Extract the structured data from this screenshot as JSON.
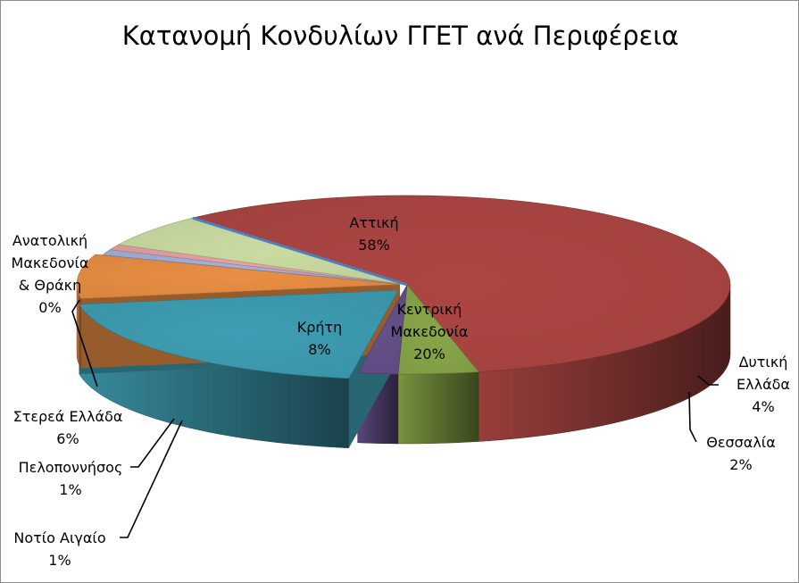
{
  "chart_data": {
    "type": "pie",
    "title": "Κατανομή Κονδυλίων ΓΓΕΤ ανά Περιφέρεια",
    "data_label_format": "percent",
    "slices": [
      {
        "name": "Αττική",
        "value": 58,
        "label_lines": [
          "Αττική",
          "58%"
        ],
        "color": "#A0413E"
      },
      {
        "name": "Δυτική Ελλάδα",
        "value": 4,
        "label_lines": [
          "Δυτική",
          "Ελλάδα",
          "4%"
        ],
        "color": "#7E9B43"
      },
      {
        "name": "Θεσσαλία",
        "value": 2,
        "label_lines": [
          "Θεσσαλία",
          "2%"
        ],
        "color": "#5E4A80"
      },
      {
        "name": "Κεντρική Μακεδονία",
        "value": 20,
        "label_lines": [
          "Κεντρική",
          "Μακεδονία",
          "20%"
        ],
        "color": "#3A92A6"
      },
      {
        "name": "Κρήτη",
        "value": 8,
        "label_lines": [
          "Κρήτη",
          "8%"
        ],
        "color": "#D8843F"
      },
      {
        "name": "Νοτίο Αιγαίο",
        "value": 1,
        "label_lines": [
          "Νοτίο Αιγαίο",
          "1%"
        ],
        "color": "#95A6CD"
      },
      {
        "name": "Πελοποννήσος",
        "value": 1,
        "label_lines": [
          "Πελοποννήσος",
          "1%"
        ],
        "color": "#D69597"
      },
      {
        "name": "Στερεά Ελλάδα",
        "value": 6,
        "label_lines": [
          "Στερεά Ελλάδα",
          "6%"
        ],
        "color": "#BCCC96"
      },
      {
        "name": "Ανατολική Μακεδονία & Θράκη",
        "value": 0,
        "label_lines": [
          "Ανατολική",
          "Μακεδονία",
          "& Θράκη",
          "0%"
        ],
        "color": "#4C7FBF"
      }
    ]
  }
}
